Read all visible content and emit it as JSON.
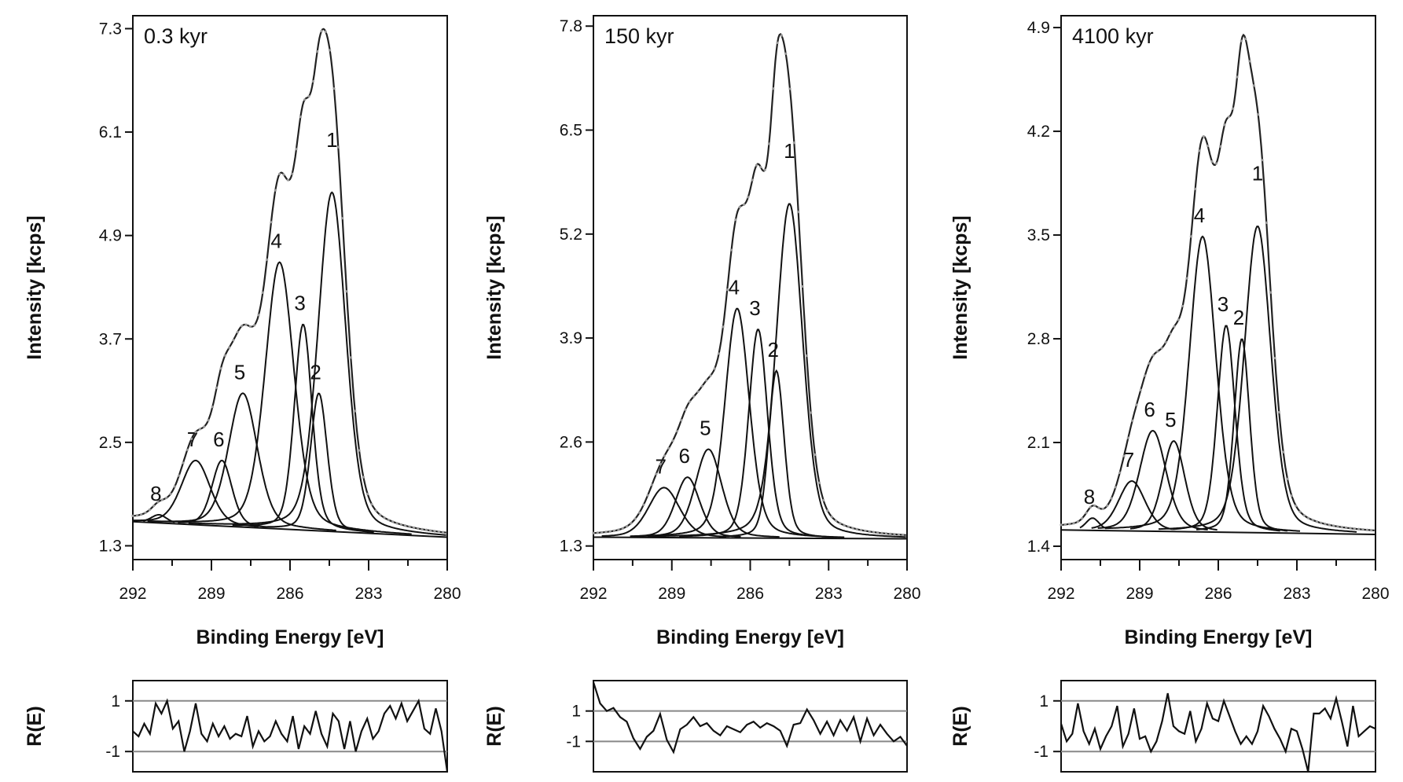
{
  "chart_data": [
    {
      "type": "line",
      "panel_label": "0.3 kyr",
      "xlabel": "Binding Energy [eV]",
      "ylabel": "Intensity [kcps]",
      "xlim": [
        292,
        280
      ],
      "ylim": [
        1.14,
        7.45
      ],
      "xticks": [
        "292",
        "289",
        "286",
        "283",
        "280"
      ],
      "yticks": [
        "1.3",
        "2.5",
        "3.7",
        "4.9",
        "6.1",
        "7.3"
      ],
      "background": {
        "start": 1.58,
        "end": 1.4
      },
      "components": [
        {
          "label": "1",
          "center": 284.4,
          "height": 5.4,
          "fwhm": 1.25
        },
        {
          "label": "2",
          "center": 284.9,
          "height": 3.07,
          "fwhm": 0.75
        },
        {
          "label": "3",
          "center": 285.5,
          "height": 3.87,
          "fwhm": 0.8
        },
        {
          "label": "4",
          "center": 286.4,
          "height": 4.59,
          "fwhm": 1.3
        },
        {
          "label": "5",
          "center": 287.8,
          "height": 3.07,
          "fwhm": 1.3
        },
        {
          "label": "6",
          "center": 288.6,
          "height": 2.29,
          "fwhm": 0.9
        },
        {
          "label": "7",
          "center": 289.6,
          "height": 2.29,
          "fwhm": 1.3
        },
        {
          "label": "8",
          "center": 291.0,
          "height": 1.66,
          "fwhm": 0.7
        }
      ],
      "envelope_peak": {
        "x": 285.0,
        "y": 7.3
      },
      "residual": {
        "ylabel": "R(E)",
        "yticks": [
          "1",
          "-1"
        ],
        "ylim": [
          -1.8,
          1.8
        ],
        "values": [
          -0.2,
          -0.4,
          0.1,
          -0.3,
          0.9,
          0.5,
          1.0,
          -0.1,
          0.2,
          -1.0,
          -0.2,
          0.9,
          -0.3,
          -0.6,
          0.1,
          -0.4,
          0.0,
          -0.5,
          -0.3,
          -0.4,
          0.4,
          -0.8,
          -0.2,
          -0.6,
          -0.4,
          0.2,
          -0.3,
          -0.6,
          0.4,
          -0.9,
          0.0,
          -0.3,
          0.6,
          -0.3,
          -0.8,
          0.5,
          0.2,
          -0.9,
          0.2,
          -1.0,
          -0.2,
          0.3,
          -0.5,
          -0.2,
          0.5,
          0.8,
          0.3,
          0.9,
          0.2,
          0.6,
          1.0,
          -0.1,
          -0.3,
          0.7,
          -0.2,
          -1.9
        ]
      }
    },
    {
      "type": "line",
      "panel_label": "150 kyr",
      "xlabel": "Binding Energy [eV]",
      "ylabel": "Intensity [kcps]",
      "xlim": [
        292,
        280
      ],
      "ylim": [
        1.13,
        7.93
      ],
      "xticks": [
        "292",
        "289",
        "286",
        "283",
        "280"
      ],
      "yticks": [
        "1.3",
        "2.6",
        "3.9",
        "5.2",
        "6.5",
        "7.8"
      ],
      "background": {
        "start": 1.41,
        "end": 1.39
      },
      "components": [
        {
          "label": "1",
          "center": 284.5,
          "height": 5.58,
          "fwhm": 1.2
        },
        {
          "label": "2",
          "center": 285.0,
          "height": 3.49,
          "fwhm": 0.7
        },
        {
          "label": "3",
          "center": 285.7,
          "height": 4.01,
          "fwhm": 0.85
        },
        {
          "label": "4",
          "center": 286.5,
          "height": 4.27,
          "fwhm": 1.1
        },
        {
          "label": "5",
          "center": 287.6,
          "height": 2.51,
          "fwhm": 1.2
        },
        {
          "label": "6",
          "center": 288.4,
          "height": 2.16,
          "fwhm": 1.1
        },
        {
          "label": "7",
          "center": 289.3,
          "height": 2.03,
          "fwhm": 1.4
        }
      ],
      "envelope_peak": {
        "x": 285.1,
        "y": 7.7
      },
      "residual": {
        "ylabel": "R(E)",
        "yticks": [
          "1",
          "-1"
        ],
        "ylim": [
          -3,
          3
        ],
        "values": [
          2.9,
          1.5,
          1.0,
          1.2,
          0.6,
          0.3,
          -0.8,
          -1.5,
          -0.7,
          -0.3,
          0.8,
          -0.9,
          -1.7,
          -0.2,
          0.1,
          0.6,
          0.0,
          0.2,
          -0.3,
          -0.6,
          0.0,
          -0.2,
          -0.4,
          0.1,
          0.3,
          -0.1,
          0.2,
          0.0,
          -0.3,
          -1.3,
          0.1,
          0.2,
          1.1,
          0.4,
          -0.5,
          0.3,
          -0.6,
          0.4,
          -0.3,
          0.6,
          -1.0,
          0.5,
          -0.6,
          0.1,
          -0.5,
          -1.0,
          -0.7,
          -1.3
        ]
      }
    },
    {
      "type": "line",
      "panel_label": "4100 kyr",
      "xlabel": "Binding Energy [eV]",
      "ylabel": "Intensity [kcps]",
      "xlim": [
        292,
        280
      ],
      "ylim": [
        1.31,
        4.98
      ],
      "xticks": [
        "292",
        "289",
        "286",
        "283",
        "280"
      ],
      "yticks": [
        "1.4",
        "2.1",
        "2.8",
        "3.5",
        "4.2",
        "4.9"
      ],
      "background": {
        "start": 1.51,
        "end": 1.48
      },
      "components": [
        {
          "label": "1",
          "center": 284.5,
          "height": 3.56,
          "fwhm": 1.2
        },
        {
          "label": "2",
          "center": 285.1,
          "height": 2.8,
          "fwhm": 0.7
        },
        {
          "label": "3",
          "center": 285.7,
          "height": 2.89,
          "fwhm": 0.8
        },
        {
          "label": "4",
          "center": 286.6,
          "height": 3.49,
          "fwhm": 1.2
        },
        {
          "label": "5",
          "center": 287.7,
          "height": 2.11,
          "fwhm": 1.0
        },
        {
          "label": "6",
          "center": 288.5,
          "height": 2.18,
          "fwhm": 1.2
        },
        {
          "label": "7",
          "center": 289.3,
          "height": 1.84,
          "fwhm": 1.2
        },
        {
          "label": "8",
          "center": 290.8,
          "height": 1.59,
          "fwhm": 0.6
        }
      ],
      "envelope_peak": {
        "x": 285.1,
        "y": 4.85
      },
      "residual": {
        "ylabel": "R(E)",
        "yticks": [
          "1",
          "-1"
        ],
        "ylim": [
          -1.8,
          1.8
        ],
        "values": [
          0.1,
          -0.6,
          -0.3,
          0.9,
          -0.2,
          -0.7,
          -0.1,
          -0.9,
          -0.4,
          0.0,
          0.8,
          -0.8,
          -0.3,
          0.7,
          -0.5,
          -0.4,
          -1.0,
          -0.6,
          0.2,
          1.3,
          0.0,
          -0.2,
          -0.3,
          0.6,
          -0.6,
          -0.1,
          0.9,
          0.3,
          0.2,
          1.0,
          0.4,
          -0.2,
          -0.7,
          -0.4,
          -0.7,
          -0.2,
          0.8,
          0.4,
          -0.1,
          -0.5,
          -1.0,
          -0.1,
          -0.2,
          -0.9,
          -1.8,
          0.5,
          0.5,
          0.7,
          0.3,
          1.1,
          0.2,
          -0.8,
          0.8,
          -0.4,
          -0.2,
          0.0,
          -0.1
        ]
      }
    }
  ]
}
